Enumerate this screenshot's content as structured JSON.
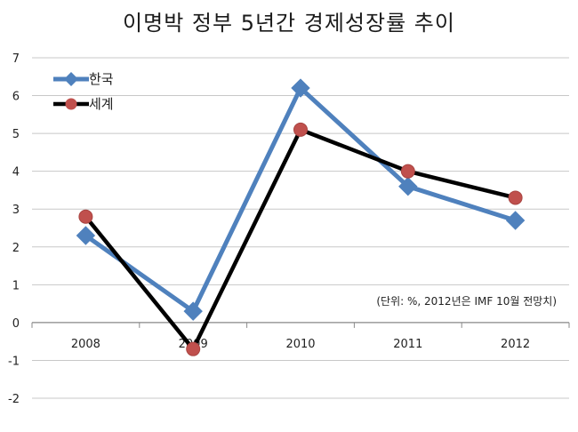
{
  "chart_data": {
    "type": "line",
    "title": "이명박 정부 5년간 경제성장률 추이",
    "note": "(단위: %, 2012년은 IMF 10월 전망치)",
    "categories": [
      "2008",
      "2009",
      "2010",
      "2011",
      "2012"
    ],
    "yticks": [
      "-2",
      "-1",
      "0",
      "1",
      "2",
      "3",
      "4",
      "5",
      "6",
      "7"
    ],
    "ylim": [
      -2,
      7
    ],
    "grid": true,
    "legend_position": "top-left",
    "series": [
      {
        "name": "한국",
        "values": [
          2.3,
          0.3,
          6.2,
          3.6,
          2.7
        ],
        "color": "#4f81bd",
        "marker": "diamond"
      },
      {
        "name": "세계",
        "values": [
          2.8,
          -0.7,
          5.1,
          4.0,
          3.3
        ],
        "color": "#000000",
        "marker_color": "#c0504d",
        "marker": "circle"
      }
    ]
  }
}
